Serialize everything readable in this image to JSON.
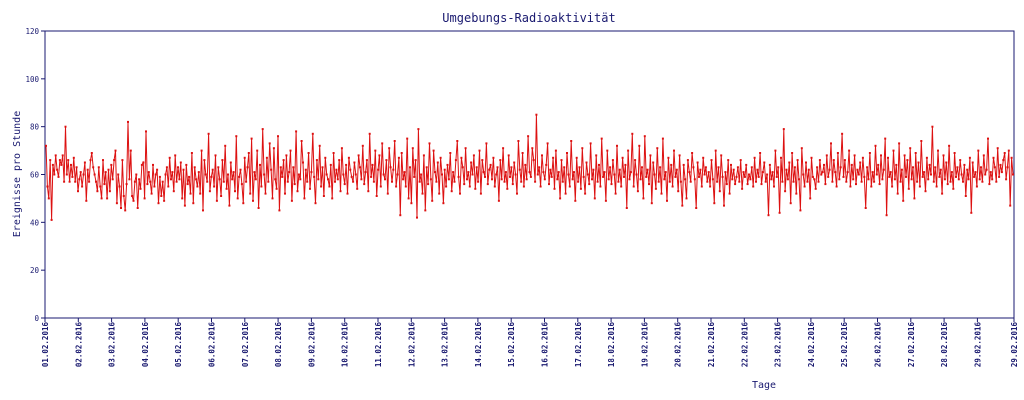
{
  "chart_data": {
    "type": "line",
    "title": "Umgebungs-Radioaktivität",
    "xlabel": "Tage",
    "ylabel": "Ereignisse pro Stunde",
    "ylim": [
      0,
      120
    ],
    "yticks": [
      0,
      20,
      40,
      60,
      80,
      100,
      120
    ],
    "xlim": [
      "01.02.2016",
      "29.02.2016"
    ],
    "xticks": [
      "01.02.2016",
      "02.02.2016",
      "03.02.2016",
      "04.02.2016",
      "05.02.2016",
      "06.02.2016",
      "07.02.2016",
      "08.02.2016",
      "09.02.2016",
      "10.02.2016",
      "11.02.2016",
      "12.02.2016",
      "13.02.2016",
      "14.02.2016",
      "15.02.2016",
      "16.02.2016",
      "17.02.2016",
      "18.02.2016",
      "19.02.2016",
      "20.02.2016",
      "21.02.2016",
      "22.02.2016",
      "23.02.2016",
      "24.02.2016",
      "25.02.2016",
      "26.02.2016",
      "27.02.2016",
      "28.02.2016",
      "29.02.2016",
      "29.02.2016"
    ],
    "grid": false,
    "colors": {
      "series": "#dd1111",
      "axis": "#1a1a70",
      "text": "#1a1a70"
    },
    "series": [
      {
        "name": "",
        "x_unit": "day since 01.02.2016",
        "points_per_day": 24,
        "values": [
          72,
          55,
          50,
          66,
          41,
          64,
          60,
          68,
          62,
          59,
          66,
          64,
          68,
          57,
          80,
          60,
          66,
          57,
          64,
          59,
          67,
          57,
          63,
          53,
          58,
          61,
          55,
          60,
          65,
          49,
          62,
          57,
          66,
          69,
          63,
          60,
          57,
          53,
          63,
          55,
          50,
          66,
          56,
          61,
          50,
          62,
          53,
          64,
          58,
          66,
          70,
          48,
          60,
          55,
          46,
          66,
          51,
          45,
          56,
          82,
          58,
          70,
          51,
          49,
          57,
          60,
          46,
          58,
          54,
          64,
          65,
          50,
          78,
          56,
          61,
          57,
          52,
          64,
          55,
          60,
          62,
          48,
          59,
          51,
          57,
          49,
          60,
          63,
          55,
          67,
          58,
          61,
          53,
          68,
          57,
          63,
          58,
          65,
          50,
          62,
          47,
          64,
          56,
          59,
          52,
          69,
          48,
          63,
          58,
          55,
          61,
          52,
          70,
          45,
          66,
          60,
          57,
          77,
          53,
          59,
          62,
          55,
          68,
          49,
          63,
          58,
          51,
          66,
          57,
          72,
          54,
          60,
          47,
          65,
          58,
          61,
          53,
          76,
          50,
          59,
          62,
          56,
          48,
          67,
          57,
          63,
          69,
          52,
          75,
          49,
          61,
          58,
          70,
          46,
          64,
          55,
          79,
          60,
          52,
          67,
          57,
          73,
          62,
          50,
          71,
          58,
          54,
          76,
          45,
          63,
          59,
          66,
          52,
          68,
          57,
          61,
          70,
          49,
          63,
          56,
          78,
          53,
          60,
          58,
          74,
          65,
          50,
          62,
          57,
          69,
          54,
          61,
          77,
          59,
          48,
          66,
          58,
          72,
          55,
          63,
          51,
          67,
          60,
          58,
          55,
          64,
          50,
          69,
          57,
          62,
          58,
          66,
          53,
          71,
          60,
          56,
          64,
          52,
          67,
          62,
          59,
          57,
          65,
          60,
          54,
          68,
          63,
          58,
          72,
          56,
          61,
          66,
          53,
          77,
          59,
          64,
          57,
          70,
          51,
          62,
          68,
          55,
          73,
          60,
          58,
          66,
          52,
          71,
          63,
          57,
          62,
          74,
          55,
          60,
          67,
          43,
          69,
          58,
          61,
          55,
          75,
          50,
          63,
          48,
          71,
          59,
          66,
          42,
          79,
          57,
          60,
          52,
          68,
          45,
          63,
          56,
          73,
          58,
          49,
          70,
          61,
          57,
          65,
          52,
          67,
          60,
          48,
          62,
          55,
          64,
          58,
          69,
          53,
          61,
          57,
          66,
          74,
          59,
          52,
          67,
          63,
          56,
          71,
          58,
          61,
          55,
          65,
          60,
          68,
          54,
          63,
          57,
          70,
          52,
          66,
          61,
          59,
          73,
          56,
          62,
          64,
          58,
          67,
          55,
          60,
          63,
          49,
          66,
          58,
          71,
          57,
          61,
          54,
          68,
          59,
          63,
          56,
          65,
          60,
          52,
          74,
          62,
          57,
          69,
          55,
          64,
          58,
          76,
          61,
          59,
          71,
          66,
          57,
          85,
          60,
          63,
          55,
          68,
          61,
          58,
          64,
          73,
          56,
          62,
          59,
          67,
          54,
          70,
          58,
          61,
          50,
          66,
          57,
          63,
          52,
          69,
          60,
          55,
          74,
          58,
          61,
          49,
          67,
          57,
          63,
          54,
          71,
          59,
          52,
          65,
          60,
          56,
          73,
          58,
          62,
          50,
          68,
          57,
          64,
          55,
          75,
          59,
          61,
          49,
          70,
          58,
          63,
          56,
          66,
          60,
          52,
          72,
          57,
          62,
          55,
          67,
          59,
          64,
          46,
          70,
          58,
          61,
          77,
          55,
          66,
          60,
          53,
          72,
          58,
          63,
          50,
          76,
          59,
          62,
          56,
          68,
          48,
          65,
          60,
          54,
          71,
          57,
          63,
          52,
          75,
          58,
          61,
          49,
          67,
          57,
          64,
          55,
          70,
          59,
          62,
          53,
          68,
          57,
          47,
          64,
          58,
          50,
          66,
          61,
          57,
          69,
          63,
          58,
          46,
          65,
          59,
          62,
          55,
          67,
          60,
          63,
          57,
          61,
          55,
          66,
          58,
          48,
          70,
          57,
          63,
          53,
          68,
          59,
          47,
          61,
          56,
          66,
          52,
          64,
          58,
          62,
          56,
          59,
          63,
          57,
          66,
          54,
          61,
          59,
          64,
          56,
          60,
          58,
          63,
          55,
          67,
          57,
          62,
          59,
          69,
          56,
          61,
          65,
          57,
          60,
          43,
          64,
          58,
          61,
          55,
          70,
          59,
          63,
          44,
          67,
          57,
          79,
          53,
          62,
          58,
          65,
          48,
          69,
          57,
          63,
          52,
          66,
          58,
          45,
          71,
          60,
          55,
          65,
          57,
          62,
          50,
          67,
          59,
          58,
          54,
          63,
          57,
          66,
          60,
          61,
          64,
          56,
          68,
          59,
          62,
          73,
          57,
          66,
          61,
          55,
          69,
          58,
          63,
          77,
          59,
          66,
          57,
          61,
          70,
          55,
          64,
          58,
          68,
          56,
          62,
          60,
          65,
          57,
          67,
          59,
          46,
          63,
          58,
          69,
          55,
          61,
          57,
          72,
          60,
          64,
          56,
          68,
          58,
          62,
          75,
          43,
          67,
          59,
          61,
          55,
          70,
          58,
          64,
          52,
          73,
          57,
          62,
          49,
          68,
          59,
          66,
          54,
          71,
          58,
          63,
          50,
          69,
          57,
          65,
          55,
          74,
          59,
          61,
          53,
          67,
          58,
          64,
          60,
          80,
          57,
          63,
          55,
          70,
          59,
          62,
          52,
          68,
          58,
          65,
          56,
          72,
          57,
          61,
          54,
          69,
          59,
          63,
          58,
          66,
          60,
          57,
          64,
          51,
          62,
          58,
          67,
          44,
          65,
          59,
          61,
          55,
          70,
          58,
          63,
          57,
          68,
          60,
          62,
          75,
          56,
          61,
          58,
          67,
          63,
          57,
          71,
          59,
          64,
          61,
          66,
          69,
          58,
          63,
          70,
          47,
          67,
          60
        ]
      }
    ]
  }
}
